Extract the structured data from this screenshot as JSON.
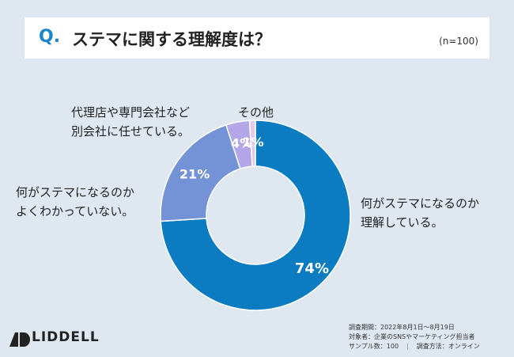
{
  "question": {
    "mark": "Q.",
    "text": "ステマに関する理解度は？",
    "sample": "(n=100)"
  },
  "chart_data": {
    "type": "pie",
    "subtype": "donut",
    "slices": [
      {
        "label_lines": [
          "何がステマになるのか",
          "理解している。"
        ],
        "value": 74,
        "value_label": "74%",
        "color": "#0b7cc2"
      },
      {
        "label_lines": [
          "何がステマになるのか",
          "よくわかっていない。"
        ],
        "value": 21,
        "value_label": "21%",
        "color": "#7492d6"
      },
      {
        "label_lines": [
          "代理店や専門会社など",
          "別会社に任せている。"
        ],
        "value": 4,
        "value_label": "4%",
        "color": "#b2a5e8"
      },
      {
        "label_lines": [
          "その他"
        ],
        "value": 1,
        "value_label": "1%",
        "color": "#e2c9f0"
      }
    ]
  },
  "footer": {
    "period": "調査期間：2022年8月1日～8月19日",
    "target": "対象者：企業のSNSやマーケティング担当者",
    "sample": "サンプル数：100",
    "separator": "|",
    "method": "調査方法：オンライン"
  },
  "brand": {
    "logo_text": "LIDDELL"
  }
}
